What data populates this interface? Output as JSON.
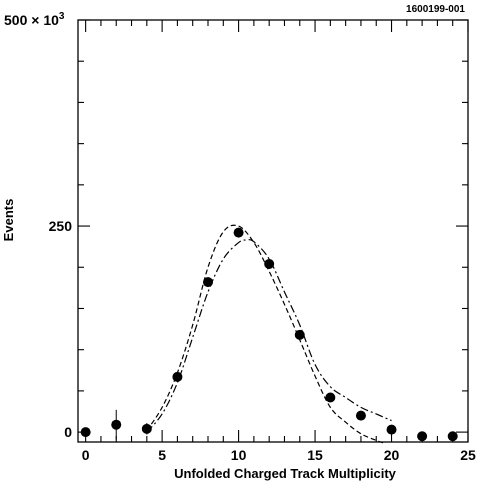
{
  "figure_id": "1600199-001",
  "chart_data": {
    "type": "scatter",
    "xlabel": "Unfolded Charged  Track  Multiplicity",
    "ylabel": "Events",
    "xlim": [
      -0.5,
      25
    ],
    "ylim": [
      -12,
      500
    ],
    "x_ticks": [
      "0",
      "5",
      "10",
      "15",
      "20",
      "25"
    ],
    "y_ticks": [
      "0",
      "250",
      "500"
    ],
    "y_multiplier": "× 10",
    "y_multiplier_exp": "3",
    "grid": false,
    "series": [
      {
        "kind": "points",
        "x": [
          0,
          2,
          4,
          6,
          8,
          10,
          12,
          14,
          16,
          18,
          20,
          22,
          24
        ],
        "y": [
          0,
          9,
          4,
          67,
          182,
          242,
          204,
          118,
          42,
          20,
          3,
          -5,
          -5
        ],
        "yerr": [
          2,
          18,
          7,
          5,
          6,
          6,
          6,
          5,
          4,
          3,
          2,
          1,
          1
        ]
      },
      {
        "kind": "dashed",
        "x": [
          4,
          5,
          6,
          7,
          8,
          9,
          10,
          11,
          12,
          13,
          14,
          15,
          16,
          17,
          18,
          19,
          19.6
        ],
        "y": [
          2,
          30,
          72,
          130,
          200,
          243,
          250,
          230,
          195,
          155,
          112,
          68,
          30,
          12,
          -2,
          -10,
          -14
        ]
      },
      {
        "kind": "dash-dot",
        "x": [
          4,
          5,
          6,
          7,
          8,
          9,
          10,
          10.5,
          11,
          12,
          13,
          14,
          15,
          16,
          17,
          18,
          19,
          20
        ],
        "y": [
          0,
          22,
          60,
          115,
          170,
          210,
          230,
          233,
          231,
          210,
          170,
          130,
          82,
          55,
          42,
          30,
          22,
          14
        ]
      }
    ]
  }
}
